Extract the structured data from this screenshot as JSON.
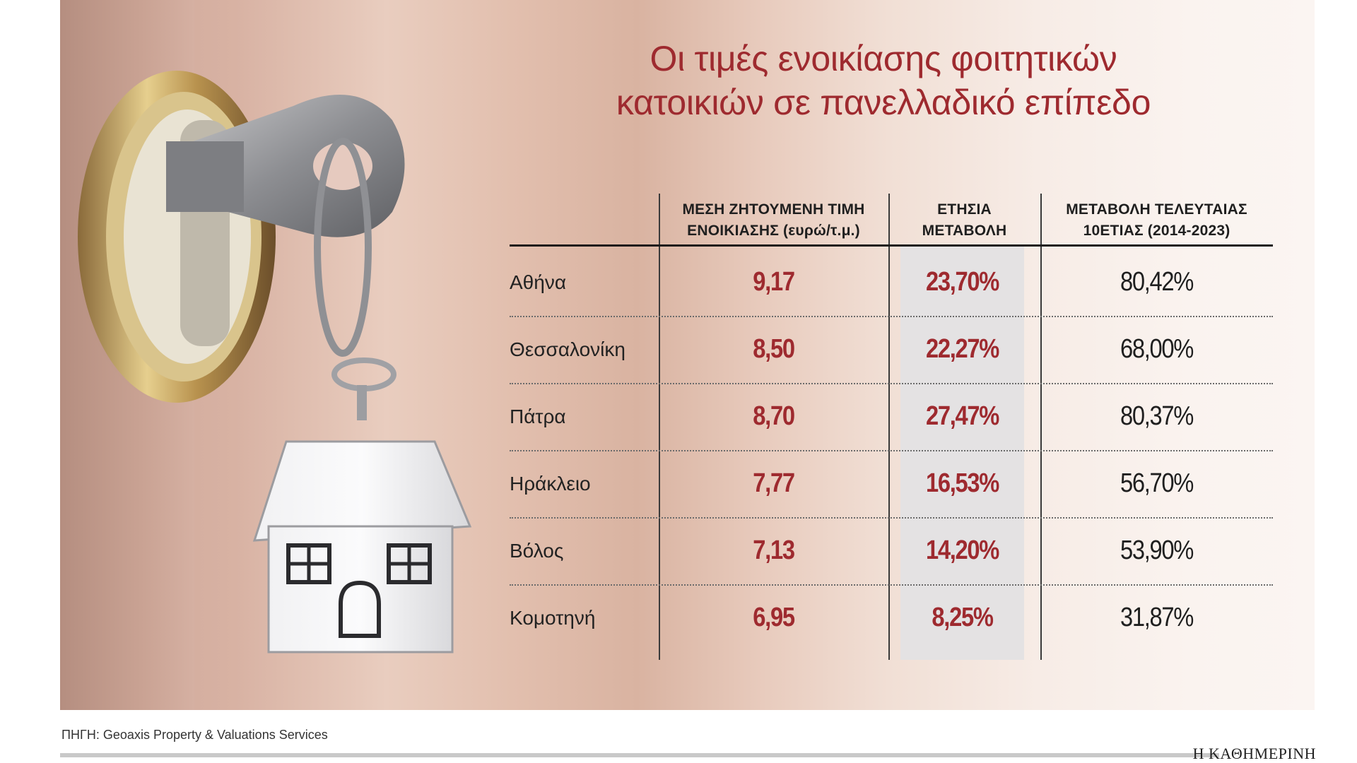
{
  "title": {
    "line1": "Οι τιμές ενοικίασης φοιτητικών",
    "line2": "κατοικιών σε πανελλαδικό επίπεδο"
  },
  "table": {
    "headers": {
      "price_line1": "ΜΕΣΗ ΖΗΤΟΥΜΕΝΗ ΤΙΜΗ",
      "price_line2": "ΕΝΟΙΚΙΑΣΗΣ (ευρώ/τ.μ.)",
      "annual_line1": "ΕΤΗΣΙΑ",
      "annual_line2": "ΜΕΤΑΒΟΛΗ",
      "decade_line1": "ΜΕΤΑΒΟΛΗ ΤΕΛΕΥΤΑΙΑΣ",
      "decade_line2": "10ΕΤΙΑΣ (2014-2023)"
    },
    "rows": [
      {
        "city": "Αθήνα",
        "price": "9,17",
        "annual": "23,70%",
        "decade": "80,42%"
      },
      {
        "city": "Θεσσαλονίκη",
        "price": "8,50",
        "annual": "22,27%",
        "decade": "68,00%"
      },
      {
        "city": "Πάτρα",
        "price": "8,70",
        "annual": "27,47%",
        "decade": "80,37%"
      },
      {
        "city": "Ηράκλειο",
        "price": "7,77",
        "annual": "16,53%",
        "decade": "56,70%"
      },
      {
        "city": "Βόλος",
        "price": "7,13",
        "annual": "14,20%",
        "decade": "53,90%"
      },
      {
        "city": "Κομοτηνή",
        "price": "6,95",
        "annual": "8,25%",
        "decade": "31,87%"
      }
    ]
  },
  "chart_data": {
    "type": "table",
    "title": "Οι τιμές ενοικίασης φοιτητικών κατοικιών σε πανελλαδικό επίπεδο",
    "columns": [
      "",
      "ΜΕΣΗ ΖΗΤΟΥΜΕΝΗ ΤΙΜΗ ΕΝΟΙΚΙΑΣΗΣ (ευρώ/τ.μ.)",
      "ΕΤΗΣΙΑ ΜΕΤΑΒΟΛΗ",
      "ΜΕΤΑΒΟΛΗ ΤΕΛΕΥΤΑΙΑΣ 10ΕΤΙΑΣ (2014-2023)"
    ],
    "categories": [
      "Αθήνα",
      "Θεσσαλονίκη",
      "Πάτρα",
      "Ηράκλειο",
      "Βόλος",
      "Κομοτηνή"
    ],
    "series": [
      {
        "name": "ΜΕΣΗ ΖΗΤΟΥΜΕΝΗ ΤΙΜΗ ΕΝΟΙΚΙΑΣΗΣ (ευρώ/τ.μ.)",
        "values": [
          9.17,
          8.5,
          8.7,
          7.77,
          7.13,
          6.95
        ]
      },
      {
        "name": "ΕΤΗΣΙΑ ΜΕΤΑΒΟΛΗ",
        "values": [
          23.7,
          22.27,
          27.47,
          16.53,
          14.2,
          8.25
        ]
      },
      {
        "name": "ΜΕΤΑΒΟΛΗ ΤΕΛΕΥΤΑΙΑΣ 10ΕΤΙΑΣ (2014-2023)",
        "values": [
          80.42,
          68.0,
          80.37,
          56.7,
          53.9,
          31.87
        ]
      }
    ],
    "colors": {
      "title": "#9e2a2f",
      "highlight_values": "#9e2a2f",
      "highlight_column_bg": "#e4e2e3"
    }
  },
  "photo": {
    "subject": "key-in-lock-with-house-keychain"
  },
  "footer": {
    "source": "ΠΗΓΗ: Geoaxis Property & Valuations Services",
    "brand": "Η ΚΑΘΗΜΕΡΙΝΗ"
  }
}
